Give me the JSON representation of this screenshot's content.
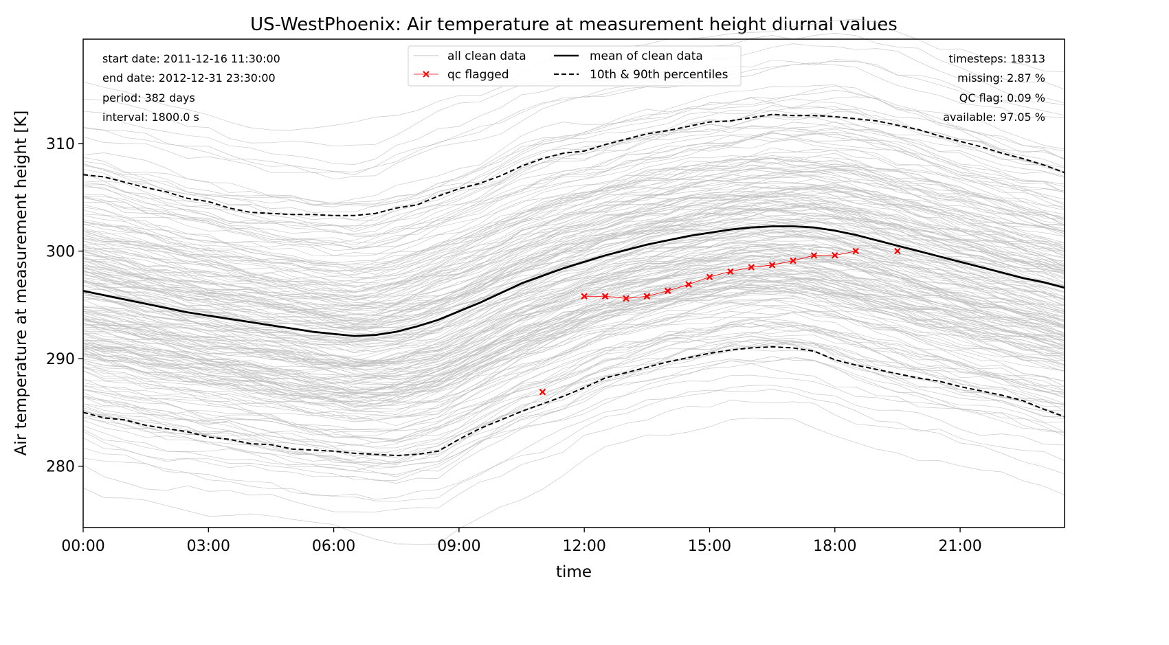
{
  "chart_data": {
    "type": "line",
    "title": "US-WestPhoenix: Air temperature at measurement height diurnal values",
    "xlabel": "time",
    "ylabel": "Air temperature at measurement height [K]",
    "xlim": [
      0,
      23.5
    ],
    "ylim": [
      274.3,
      319.7
    ],
    "xticks": [
      {
        "value": 0,
        "label": "00:00"
      },
      {
        "value": 3,
        "label": "03:00"
      },
      {
        "value": 6,
        "label": "06:00"
      },
      {
        "value": 9,
        "label": "09:00"
      },
      {
        "value": 12,
        "label": "12:00"
      },
      {
        "value": 15,
        "label": "15:00"
      },
      {
        "value": 18,
        "label": "18:00"
      },
      {
        "value": 21,
        "label": "21:00"
      }
    ],
    "yticks": [
      {
        "value": 280,
        "label": "280"
      },
      {
        "value": 290,
        "label": "290"
      },
      {
        "value": 300,
        "label": "300"
      },
      {
        "value": 310,
        "label": "310"
      }
    ],
    "stats_left": [
      "start date: 2011-12-16 11:30:00",
      "end date: 2012-12-31 23:30:00",
      "period: 382 days",
      "interval: 1800.0 s"
    ],
    "stats_right": [
      "timesteps: 18313",
      "missing: 2.87 %",
      "QC flag: 0.09 %",
      "available: 97.05 %"
    ],
    "legend": {
      "placement": "top-center",
      "entries": [
        {
          "label": "all clean data",
          "style": "thin-gray"
        },
        {
          "label": "qc flagged",
          "style": "red-x"
        },
        {
          "label": "mean of clean data",
          "style": "solid-black"
        },
        {
          "label": "10th & 90th percentiles",
          "style": "dashed-black"
        }
      ]
    },
    "colors": {
      "clean": "#c0c0c0",
      "flagged": "#ff0000",
      "mean": "#000000",
      "percentile": "#000000"
    },
    "series": [
      {
        "name": "mean of clean data",
        "x": [
          0,
          0.5,
          1,
          1.5,
          2,
          2.5,
          3,
          3.5,
          4,
          4.5,
          5,
          5.5,
          6,
          6.5,
          7,
          7.5,
          8,
          8.5,
          9,
          9.5,
          10,
          10.5,
          11,
          11.5,
          12,
          12.5,
          13,
          13.5,
          14,
          14.5,
          15,
          15.5,
          16,
          16.5,
          17,
          17.5,
          18,
          18.5,
          19,
          19.5,
          20,
          20.5,
          21,
          21.5,
          22,
          22.5,
          23,
          23.5
        ],
        "y": [
          296.3,
          295.9,
          295.5,
          295.1,
          294.7,
          294.3,
          294.0,
          293.7,
          293.4,
          293.1,
          292.8,
          292.5,
          292.3,
          292.1,
          292.2,
          292.5,
          293.0,
          293.6,
          294.4,
          295.2,
          296.1,
          297.0,
          297.7,
          298.4,
          299.0,
          299.6,
          300.1,
          300.6,
          301.0,
          301.4,
          301.7,
          302.0,
          302.2,
          302.3,
          302.3,
          302.2,
          301.9,
          301.5,
          301.0,
          300.5,
          300.0,
          299.5,
          299.0,
          298.5,
          298.0,
          297.5,
          297.1,
          296.6
        ]
      },
      {
        "name": "10th & 90th percentiles",
        "x": [
          0,
          0.5,
          1,
          1.5,
          2,
          2.5,
          3,
          3.5,
          4,
          4.5,
          5,
          5.5,
          6,
          6.5,
          7,
          7.5,
          8,
          8.5,
          9,
          9.5,
          10,
          10.5,
          11,
          11.5,
          12,
          12.5,
          13,
          13.5,
          14,
          14.5,
          15,
          15.5,
          16,
          16.5,
          17,
          17.5,
          18,
          18.5,
          19,
          19.5,
          20,
          20.5,
          21,
          21.5,
          22,
          22.5,
          23,
          23.5
        ],
        "y": [
          285.0,
          284.5,
          284.3,
          283.8,
          283.5,
          283.2,
          282.7,
          282.5,
          282.1,
          282.0,
          281.6,
          281.5,
          281.4,
          281.2,
          281.1,
          281.0,
          281.1,
          281.4,
          282.5,
          283.5,
          284.3,
          285.1,
          285.8,
          286.5,
          287.3,
          288.2,
          288.7,
          289.2,
          289.7,
          290.1,
          290.5,
          290.8,
          291.0,
          291.1,
          291.0,
          290.7,
          289.9,
          289.4,
          289.0,
          288.6,
          288.2,
          287.9,
          287.4,
          287.0,
          286.6,
          286.1,
          285.3,
          284.6
        ]
      },
      {
        "name": "10th & 90th percentiles",
        "x": [
          0,
          0.5,
          1,
          1.5,
          2,
          2.5,
          3,
          3.5,
          4,
          4.5,
          5,
          5.5,
          6,
          6.5,
          7,
          7.5,
          8,
          8.5,
          9,
          9.5,
          10,
          10.5,
          11,
          11.5,
          12,
          12.5,
          13,
          13.5,
          14,
          14.5,
          15,
          15.5,
          16,
          16.5,
          17,
          17.5,
          18,
          18.5,
          19,
          19.5,
          20,
          20.5,
          21,
          21.5,
          22,
          22.5,
          23,
          23.5
        ],
        "y": [
          307.1,
          306.9,
          306.4,
          305.9,
          305.5,
          304.9,
          304.6,
          304.0,
          303.6,
          303.5,
          303.4,
          303.4,
          303.3,
          303.3,
          303.5,
          304.0,
          304.3,
          305.1,
          305.8,
          306.3,
          307.0,
          307.9,
          308.6,
          309.1,
          309.3,
          309.9,
          310.4,
          310.9,
          311.2,
          311.6,
          312.0,
          312.1,
          312.4,
          312.7,
          312.6,
          312.6,
          312.5,
          312.3,
          312.1,
          311.7,
          311.3,
          310.7,
          310.2,
          309.7,
          309.1,
          308.6,
          308.0,
          307.3
        ]
      },
      {
        "name": "qc flagged",
        "x": [
          11,
          12,
          12.5,
          13,
          13.5,
          14,
          14.5,
          15,
          15.5,
          16,
          16.5,
          17,
          17.5,
          18,
          18.5,
          19.5
        ],
        "y": [
          286.9,
          295.8,
          295.8,
          295.6,
          295.8,
          296.3,
          296.9,
          297.6,
          298.1,
          298.5,
          298.7,
          299.1,
          299.6,
          299.6,
          300.0,
          300.0
        ]
      }
    ]
  }
}
